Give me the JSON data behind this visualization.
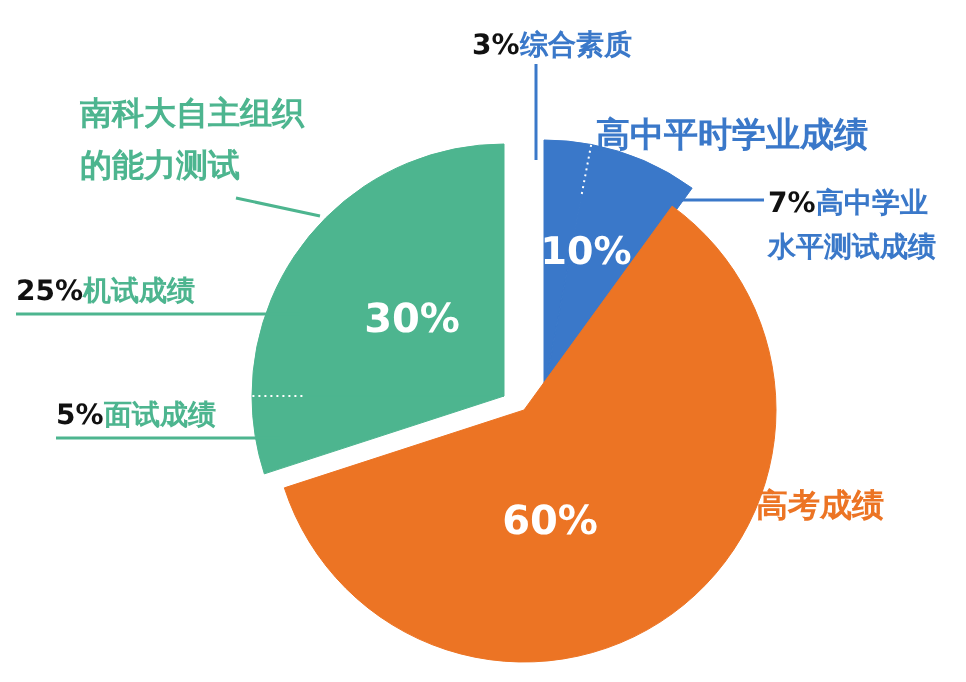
{
  "chart_data": {
    "type": "pie",
    "categories": [
      "综合素质",
      "高中学业水平测试成绩",
      "高考成绩",
      "面试成绩",
      "机试成绩"
    ],
    "values": [
      3,
      7,
      60,
      5,
      25
    ],
    "colors": [
      "#3a78c9",
      "#3a78c9",
      "#ec7424",
      "#4db58f",
      "#4db58f"
    ],
    "value_labels": [
      "3%",
      "7%",
      "60%",
      "5%",
      "25%"
    ],
    "annotations": [
      "高中平时学业成绩",
      "南科大自主组织的能力测试",
      "10%",
      "30%"
    ]
  }
}
